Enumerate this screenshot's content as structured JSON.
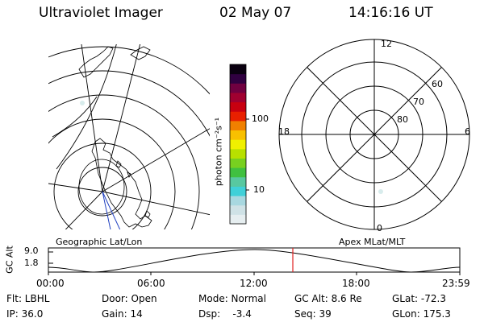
{
  "header": {
    "instrument": "Ultraviolet Imager",
    "date": "02 May 07",
    "time": "14:16:16 UT"
  },
  "geo_panel": {
    "label": "Geographic Lat/Lon"
  },
  "colorbar": {
    "unit_label": "photon cm⁻²s⁻¹",
    "ticks": [
      {
        "label": "10",
        "value": 10
      },
      {
        "label": "100",
        "value": 100
      }
    ],
    "colors": [
      "#e6eef0",
      "#cfe2e6",
      "#a8d8e0",
      "#40d0d8",
      "#58c8a0",
      "#40c040",
      "#78d020",
      "#b8e000",
      "#f0f000",
      "#f8c000",
      "#f08000",
      "#e82000",
      "#c80010",
      "#a00030",
      "#700040",
      "#300040",
      "#0a0010"
    ]
  },
  "mlt_panel": {
    "label": "Apex MLat/MLT",
    "mlt_labels": {
      "top": "12",
      "left": "18",
      "right": "6",
      "bottom": "0"
    },
    "lat_labels": [
      "60",
      "70",
      "80"
    ]
  },
  "altitude_plot": {
    "ylabel": "GC Alt",
    "yticks": [
      "9.0",
      "1.8"
    ],
    "xticks": [
      "00:00",
      "06:00",
      "12:00",
      "18:00",
      "23:59"
    ],
    "marker_color": "#e02020"
  },
  "info": {
    "filter": "Flt: LBHL",
    "ip": "IP: 36.0",
    "door": "Door: Open",
    "gain": "Gain: 14",
    "mode": "Mode: Normal",
    "dsp": "Dsp:    -3.4",
    "gc_alt": "GC Alt: 8.6 Re",
    "seq": "Seq: 39",
    "glat": "GLat: -72.3",
    "glon": "GLon: 175.3"
  }
}
